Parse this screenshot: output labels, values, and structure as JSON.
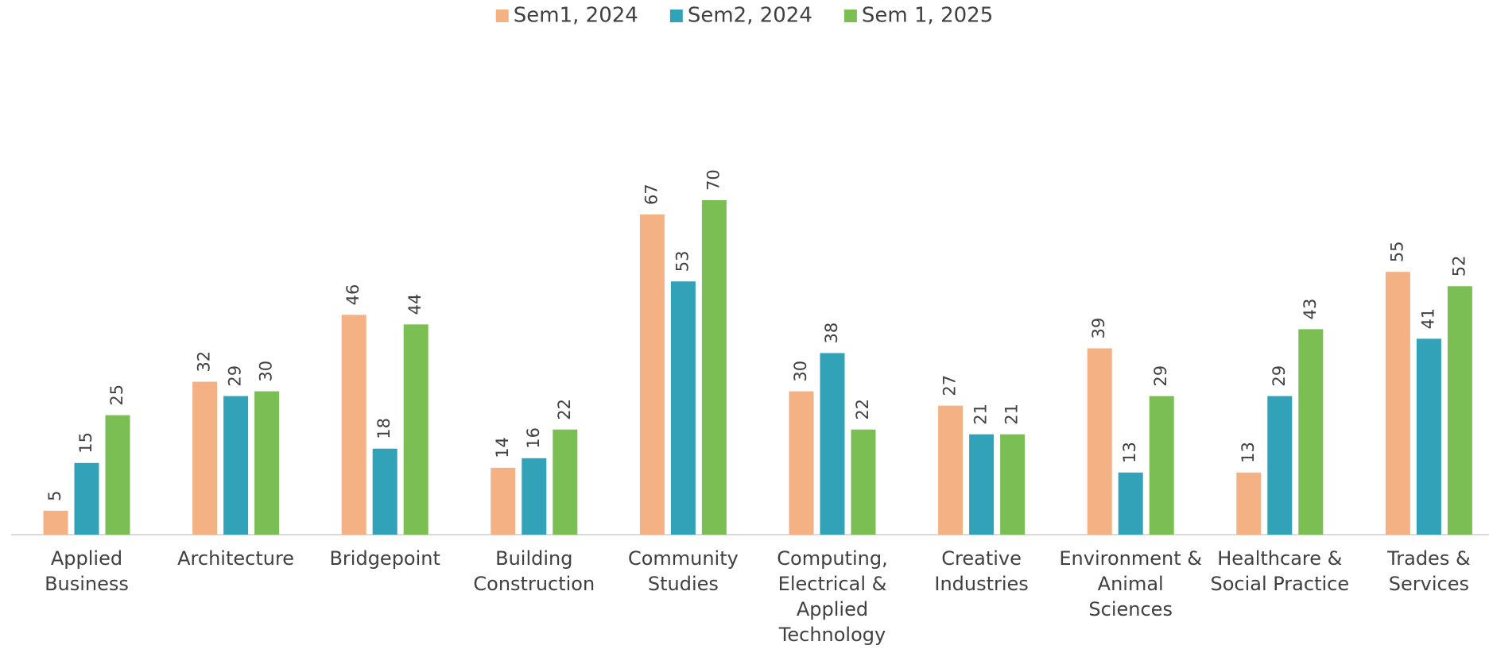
{
  "chart_data": {
    "type": "bar",
    "categories": [
      "Applied Business",
      "Architecture",
      "Bridgepoint",
      "Building Construction",
      "Community Studies",
      "Computing, Electrical & Applied Technology",
      "Creative Industries",
      "Environment & Animal Sciences",
      "Healthcare & Social Practice",
      "Trades & Services"
    ],
    "series": [
      {
        "name": "Sem1, 2024",
        "color": "#f4b183",
        "values": [
          5,
          32,
          46,
          14,
          67,
          30,
          27,
          39,
          13,
          55
        ]
      },
      {
        "name": "Sem2, 2024",
        "color": "#31a2b8",
        "values": [
          15,
          29,
          18,
          16,
          53,
          38,
          21,
          13,
          29,
          41
        ]
      },
      {
        "name": "Sem 1, 2025",
        "color": "#7bbf54",
        "values": [
          25,
          30,
          44,
          22,
          70,
          22,
          21,
          29,
          43,
          52
        ]
      }
    ],
    "legend": "top"
  }
}
